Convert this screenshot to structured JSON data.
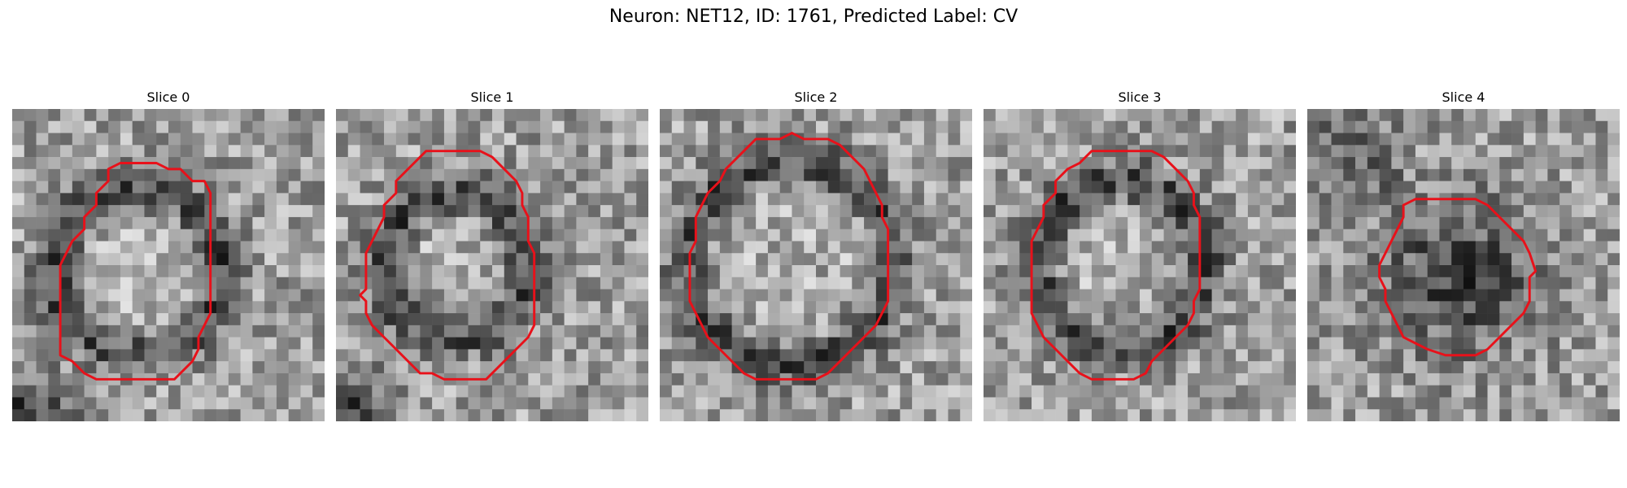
{
  "figure": {
    "title": "Neuron: NET12, ID: 1761, Predicted Label: CV"
  },
  "panels": [
    {
      "label": "Slice 0",
      "seed": 11,
      "contour": [
        [
          9.5,
          4.5
        ],
        [
          12,
          4.5
        ],
        [
          13,
          5
        ],
        [
          14,
          5
        ],
        [
          15,
          6
        ],
        [
          16,
          6
        ],
        [
          16.5,
          7
        ],
        [
          16.5,
          8
        ],
        [
          16.5,
          9
        ],
        [
          16.5,
          10
        ],
        [
          16.5,
          11
        ],
        [
          16.5,
          12
        ],
        [
          16.5,
          13
        ],
        [
          16.5,
          14
        ],
        [
          16.5,
          15
        ],
        [
          16.5,
          16
        ],
        [
          16.5,
          17
        ],
        [
          16,
          18
        ],
        [
          15.5,
          19
        ],
        [
          15.5,
          20
        ],
        [
          15,
          21
        ],
        [
          14,
          22
        ],
        [
          13.5,
          22.5
        ],
        [
          7,
          22.5
        ],
        [
          6,
          22
        ],
        [
          5,
          21
        ],
        [
          4,
          20.5
        ],
        [
          4,
          19
        ],
        [
          4,
          18
        ],
        [
          4,
          17
        ],
        [
          4,
          16
        ],
        [
          4,
          15
        ],
        [
          4,
          14
        ],
        [
          4,
          13
        ],
        [
          4.5,
          12
        ],
        [
          5,
          11
        ],
        [
          6,
          10
        ],
        [
          6,
          9
        ],
        [
          7,
          8
        ],
        [
          7,
          7
        ],
        [
          8,
          6
        ],
        [
          8,
          5
        ],
        [
          9,
          4.5
        ]
      ],
      "dark_blob": {
        "cx": 10.5,
        "cy": 13.5,
        "r": 7.0,
        "inner_light": true
      },
      "dark_corner": "bottom-left"
    },
    {
      "label": "Slice 1",
      "seed": 23,
      "contour": [
        [
          7.5,
          3.5
        ],
        [
          12,
          3.5
        ],
        [
          13,
          4
        ],
        [
          14,
          5
        ],
        [
          15,
          6
        ],
        [
          15.5,
          7
        ],
        [
          15.5,
          8
        ],
        [
          16,
          9
        ],
        [
          16,
          10
        ],
        [
          16,
          11
        ],
        [
          16.5,
          12
        ],
        [
          16.5,
          13
        ],
        [
          16.5,
          14
        ],
        [
          16.5,
          15
        ],
        [
          16.5,
          16
        ],
        [
          16.5,
          17
        ],
        [
          16.5,
          18
        ],
        [
          16,
          19
        ],
        [
          15.5,
          19.5
        ],
        [
          15,
          20
        ],
        [
          14,
          21
        ],
        [
          13,
          22
        ],
        [
          12.5,
          22.5
        ],
        [
          9,
          22.5
        ],
        [
          8,
          22
        ],
        [
          7,
          22
        ],
        [
          6,
          21
        ],
        [
          5,
          20
        ],
        [
          4,
          19
        ],
        [
          3,
          18
        ],
        [
          2.5,
          17
        ],
        [
          2.5,
          16
        ],
        [
          2,
          15.5
        ],
        [
          2.5,
          15
        ],
        [
          2.5,
          14
        ],
        [
          2.5,
          13
        ],
        [
          2.5,
          12
        ],
        [
          3,
          11
        ],
        [
          3.5,
          10
        ],
        [
          4,
          9
        ],
        [
          4,
          8
        ],
        [
          5,
          7
        ],
        [
          5,
          6
        ],
        [
          6,
          5
        ],
        [
          7,
          4
        ]
      ],
      "dark_blob": {
        "cx": 10,
        "cy": 13,
        "r": 6.0,
        "inner_light": true
      },
      "dark_corner": "bottom-left"
    },
    {
      "label": "Slice 2",
      "seed": 37,
      "contour": [
        [
          7.5,
          3
        ],
        [
          8,
          2.5
        ],
        [
          10,
          2.5
        ],
        [
          11,
          2
        ],
        [
          12,
          2.5
        ],
        [
          14,
          2.5
        ],
        [
          15,
          3
        ],
        [
          16,
          4
        ],
        [
          17,
          5
        ],
        [
          17.5,
          6
        ],
        [
          18,
          7
        ],
        [
          18.5,
          8
        ],
        [
          18.5,
          9
        ],
        [
          19,
          10
        ],
        [
          19,
          11
        ],
        [
          19,
          12
        ],
        [
          19,
          13
        ],
        [
          19,
          14
        ],
        [
          19,
          15
        ],
        [
          19,
          16
        ],
        [
          18.5,
          17
        ],
        [
          18,
          18
        ],
        [
          17,
          19
        ],
        [
          16,
          20
        ],
        [
          15,
          21
        ],
        [
          14,
          22
        ],
        [
          13,
          22.5
        ],
        [
          8,
          22.5
        ],
        [
          7,
          22
        ],
        [
          6,
          21
        ],
        [
          5,
          20
        ],
        [
          4,
          19
        ],
        [
          3.5,
          18
        ],
        [
          3,
          17
        ],
        [
          2.5,
          16
        ],
        [
          2.5,
          15
        ],
        [
          2.5,
          14
        ],
        [
          2.5,
          13
        ],
        [
          2.5,
          12
        ],
        [
          3,
          11
        ],
        [
          3,
          10
        ],
        [
          3,
          9
        ],
        [
          3.5,
          8
        ],
        [
          4,
          7
        ],
        [
          5,
          6
        ],
        [
          5.5,
          5
        ],
        [
          6,
          4.5
        ],
        [
          7,
          3.5
        ]
      ],
      "dark_blob": {
        "cx": 10.8,
        "cy": 12.8,
        "r": 8.6,
        "inner_light": true
      },
      "dark_corner": "none"
    },
    {
      "label": "Slice 3",
      "seed": 51,
      "contour": [
        [
          8.5,
          4
        ],
        [
          9,
          3.5
        ],
        [
          14,
          3.5
        ],
        [
          15,
          4
        ],
        [
          16,
          5
        ],
        [
          17,
          6
        ],
        [
          17.5,
          7
        ],
        [
          17.5,
          8
        ],
        [
          18,
          9
        ],
        [
          18,
          10
        ],
        [
          18,
          11
        ],
        [
          18,
          12
        ],
        [
          18,
          13
        ],
        [
          18,
          14
        ],
        [
          18,
          15
        ],
        [
          17.5,
          16
        ],
        [
          17.5,
          17
        ],
        [
          17,
          18
        ],
        [
          16,
          19
        ],
        [
          15,
          20
        ],
        [
          14,
          21
        ],
        [
          13.5,
          22
        ],
        [
          12.5,
          22.5
        ],
        [
          9,
          22.5
        ],
        [
          8,
          22
        ],
        [
          7,
          21
        ],
        [
          6,
          20
        ],
        [
          5,
          19
        ],
        [
          4.5,
          18
        ],
        [
          4,
          17
        ],
        [
          4,
          16
        ],
        [
          4,
          15
        ],
        [
          4,
          14
        ],
        [
          4,
          13
        ],
        [
          4,
          12
        ],
        [
          4,
          11
        ],
        [
          4.5,
          10
        ],
        [
          5,
          9
        ],
        [
          5,
          8
        ],
        [
          6,
          7
        ],
        [
          6,
          6
        ],
        [
          7,
          5
        ],
        [
          8,
          4.5
        ]
      ],
      "dark_blob": {
        "cx": 11.5,
        "cy": 13,
        "r": 7.0,
        "inner_light": true
      },
      "dark_corner": "none"
    },
    {
      "label": "Slice 4",
      "seed": 67,
      "contour": [
        [
          8,
          8
        ],
        [
          9,
          7.5
        ],
        [
          14,
          7.5
        ],
        [
          15,
          8
        ],
        [
          16,
          9
        ],
        [
          17,
          10
        ],
        [
          18,
          11
        ],
        [
          18.5,
          12
        ],
        [
          19,
          13.5
        ],
        [
          18.5,
          14
        ],
        [
          18.5,
          15
        ],
        [
          18.5,
          16
        ],
        [
          18,
          17
        ],
        [
          17,
          18
        ],
        [
          16,
          19
        ],
        [
          15,
          20
        ],
        [
          14,
          20.5
        ],
        [
          11.5,
          20.5
        ],
        [
          10,
          20
        ],
        [
          9,
          19.5
        ],
        [
          8,
          19
        ],
        [
          7.5,
          18
        ],
        [
          7,
          17
        ],
        [
          6.5,
          16
        ],
        [
          6.5,
          15
        ],
        [
          6,
          14
        ],
        [
          6,
          13
        ],
        [
          6.5,
          12
        ],
        [
          7,
          11
        ],
        [
          7.5,
          10
        ],
        [
          8,
          9
        ]
      ],
      "dark_blob": {
        "cx": 12.5,
        "cy": 14,
        "r": 6.5,
        "inner_light": false
      },
      "dark_corner": "top-left"
    }
  ],
  "style": {
    "contour_color": "#e8111a",
    "background": "#ffffff"
  }
}
